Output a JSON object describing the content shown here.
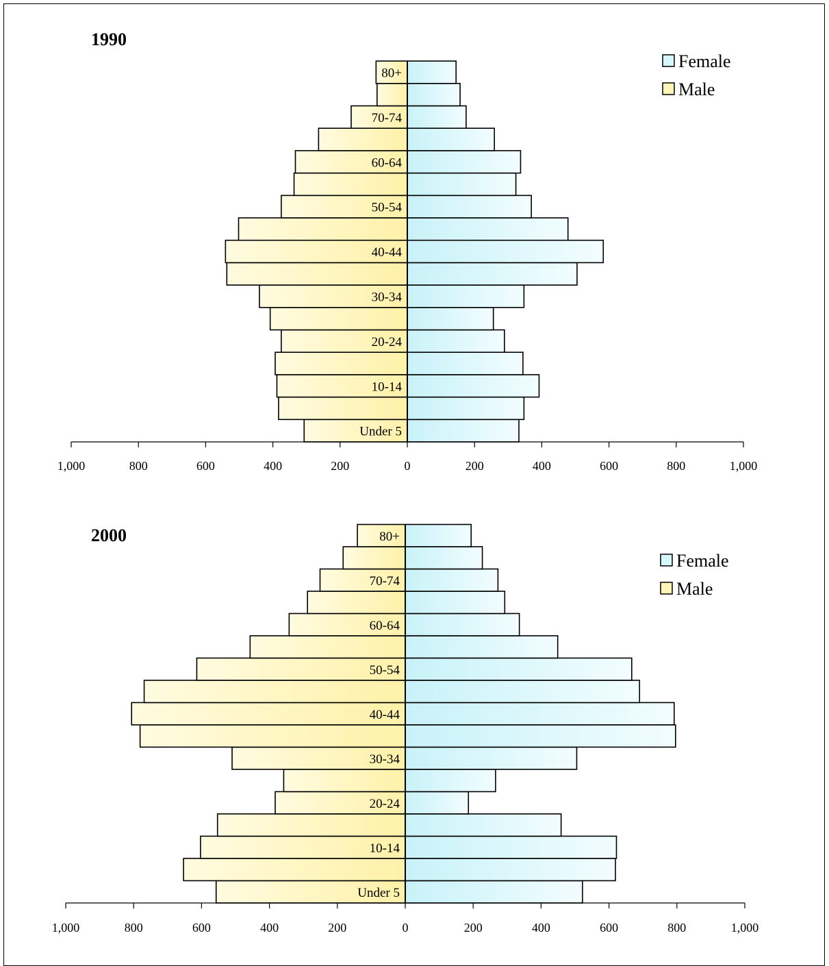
{
  "charts": [
    {
      "title": "1990",
      "legend": [
        "Female",
        "Male"
      ]
    },
    {
      "title": "2000",
      "legend": [
        "Female",
        "Male"
      ]
    }
  ],
  "chart_data": [
    {
      "type": "bar",
      "orientation": "horizontal",
      "title": "1990",
      "categories": [
        "Under 5",
        "5-9",
        "10-14",
        "15-19",
        "20-24",
        "25-29",
        "30-34",
        "35-39",
        "40-44",
        "45-49",
        "50-54",
        "55-59",
        "60-64",
        "65-69",
        "70-74",
        "75-79",
        "80+"
      ],
      "visible_category_labels": [
        "Under 5",
        "10-14",
        "20-24",
        "30-34",
        "40-44",
        "50-54",
        "60-64",
        "70-74",
        "80+"
      ],
      "series": [
        {
          "name": "Male",
          "values": [
            307,
            383,
            388,
            393,
            375,
            408,
            440,
            537,
            541,
            502,
            375,
            337,
            333,
            264,
            167,
            90,
            93
          ]
        },
        {
          "name": "Female",
          "values": [
            332,
            347,
            392,
            344,
            289,
            256,
            347,
            505,
            583,
            478,
            369,
            323,
            337,
            259,
            175,
            157,
            145
          ]
        }
      ],
      "xlim": [
        -1000,
        1000
      ],
      "xticks": [
        -1000,
        -800,
        -600,
        -400,
        -200,
        0,
        200,
        400,
        600,
        800,
        1000
      ],
      "tick_labels": [
        "1,000",
        "800",
        "600",
        "400",
        "200",
        "0",
        "200",
        "400",
        "600",
        "800",
        "1,000"
      ],
      "legend_position": "top-right",
      "colors": {
        "male": "#fff5b8",
        "female": "#d6f7fb"
      }
    },
    {
      "type": "bar",
      "orientation": "horizontal",
      "title": "2000",
      "categories": [
        "Under 5",
        "5-9",
        "10-14",
        "15-19",
        "20-24",
        "25-29",
        "30-34",
        "35-39",
        "40-44",
        "45-49",
        "50-54",
        "55-59",
        "60-64",
        "65-69",
        "70-74",
        "75-79",
        "80+"
      ],
      "visible_category_labels": [
        "Under 5",
        "10-14",
        "20-24",
        "30-34",
        "40-44",
        "50-54",
        "60-64",
        "70-74",
        "80+"
      ],
      "series": [
        {
          "name": "Male",
          "values": [
            557,
            653,
            603,
            553,
            383,
            358,
            510,
            781,
            806,
            769,
            614,
            457,
            342,
            288,
            251,
            183,
            141
          ]
        },
        {
          "name": "Female",
          "values": [
            522,
            619,
            622,
            459,
            186,
            266,
            505,
            796,
            792,
            690,
            667,
            449,
            336,
            293,
            273,
            227,
            194
          ]
        }
      ],
      "xlim": [
        -1000,
        1000
      ],
      "xticks": [
        -1000,
        -800,
        -600,
        -400,
        -200,
        0,
        200,
        400,
        600,
        800,
        1000
      ],
      "tick_labels": [
        "1,000",
        "800",
        "600",
        "400",
        "200",
        "0",
        "200",
        "400",
        "600",
        "800",
        "1,000"
      ],
      "legend_position": "top-right",
      "colors": {
        "male": "#fff5b8",
        "female": "#d6f7fb"
      }
    }
  ]
}
